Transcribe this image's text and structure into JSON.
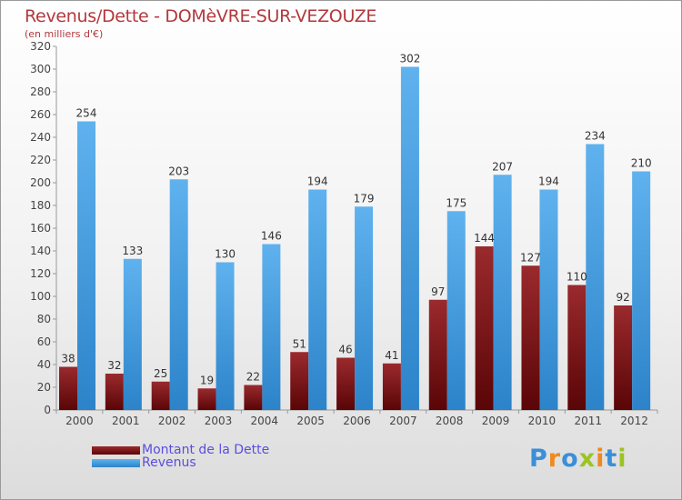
{
  "header": {
    "title": "Revenus/Dette - DOMèVRE-SUR-VEZOUZE",
    "subtitle": "(en milliers d'€)"
  },
  "colors": {
    "title": "#b3383c",
    "debt": "#7a1417",
    "revenue": "#4aa3e2",
    "value_label": "#333333",
    "legend_text": "#5a4ee0"
  },
  "legend": {
    "debt_label": "Montant de la Dette",
    "revenue_label": "Revenus"
  },
  "logo": {
    "letters": [
      "P",
      "r",
      "o",
      "x",
      "i",
      "t",
      "i"
    ],
    "colors": [
      "#3a8fd8",
      "#ef8a1f",
      "#3a8fd8",
      "#9bc421",
      "#ef8a1f",
      "#3a8fd8",
      "#9bc421"
    ]
  },
  "chart_data": {
    "type": "bar",
    "title": "Revenus/Dette - DOMèVRE-SUR-VEZOUZE",
    "subtitle": "(en milliers d'€)",
    "categories": [
      "2000",
      "2001",
      "2002",
      "2003",
      "2004",
      "2005",
      "2006",
      "2007",
      "2008",
      "2009",
      "2010",
      "2011",
      "2012"
    ],
    "series": [
      {
        "name": "Montant de la Dette",
        "values": [
          38,
          32,
          25,
          19,
          22,
          51,
          46,
          41,
          97,
          144,
          127,
          110,
          92
        ]
      },
      {
        "name": "Revenus",
        "values": [
          254,
          133,
          203,
          130,
          146,
          194,
          179,
          302,
          175,
          207,
          194,
          234,
          210
        ]
      }
    ],
    "ylim": [
      0,
      320
    ],
    "ytick_step": 20,
    "grid": false,
    "legend_position": "bottom-left"
  }
}
